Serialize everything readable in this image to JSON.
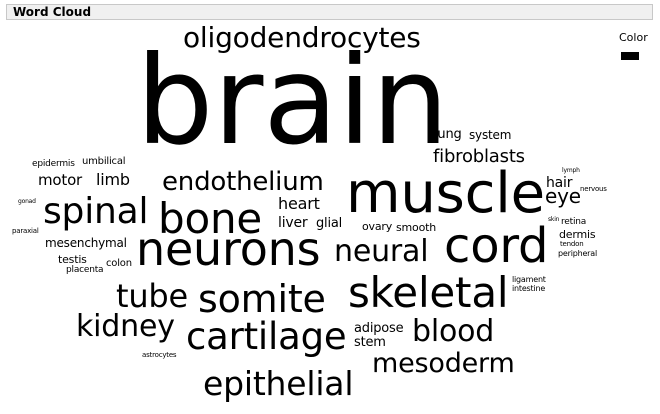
{
  "window": {
    "title": "Word Cloud"
  },
  "legend": {
    "label": "Color",
    "swatch_color": "#000000"
  },
  "cloud": {
    "text_color": "#000000",
    "words": [
      "brain",
      "oligodendrocytes",
      "muscle",
      "neurons",
      "cord",
      "skeletal",
      "somite",
      "cartilage",
      "epithelial",
      "spinal",
      "bone",
      "tube",
      "kidney",
      "blood",
      "mesoderm",
      "endothelium",
      "neural",
      "fibroblasts",
      "eye",
      "heart",
      "liver",
      "glial",
      "hair",
      "limb",
      "motor",
      "lung",
      "system",
      "ovary",
      "smooth",
      "adipose",
      "stem",
      "dermis",
      "mesenchymal",
      "colon",
      "testis",
      "umbilical",
      "epidermis",
      "placenta",
      "retina",
      "ligament",
      "intestine",
      "peripheral",
      "tendon",
      "nervous",
      "lymph",
      "astrocytes",
      "paraxial",
      "gonad",
      "skin"
    ]
  }
}
